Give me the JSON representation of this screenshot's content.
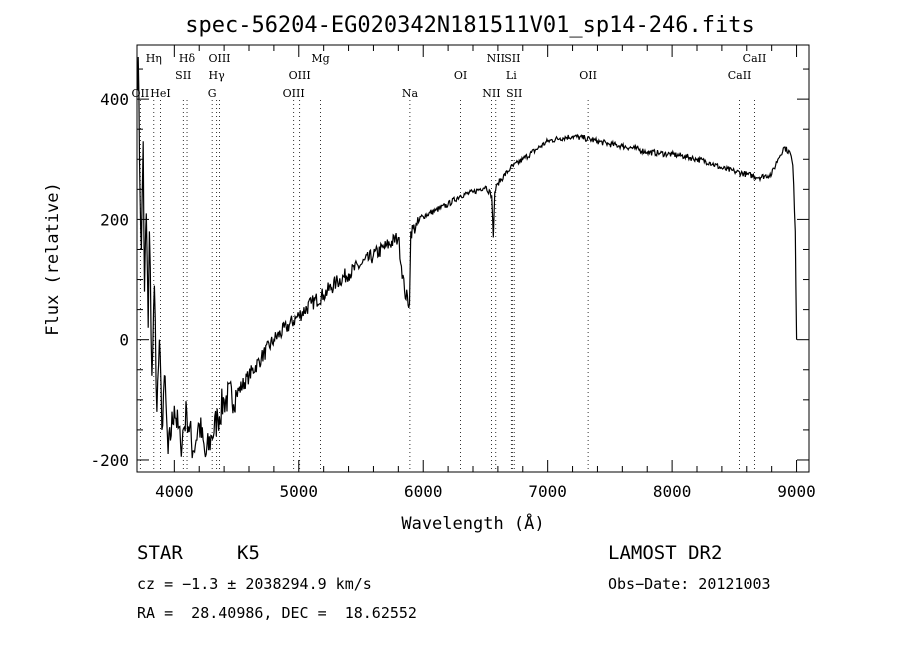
{
  "chart_data": {
    "type": "line",
    "title": "spec-56204-EG020342N181511V01_sp14-246.fits",
    "xlabel": "Wavelength (Å)",
    "ylabel": "Flux (relative)",
    "xlim": [
      3700,
      9100
    ],
    "ylim": [
      -220,
      490
    ],
    "xticks": [
      4000,
      5000,
      6000,
      7000,
      8000,
      9000
    ],
    "yticks": [
      -200,
      0,
      200,
      400
    ],
    "grid": false,
    "series": [
      {
        "x": [
          3700,
          3710,
          3720,
          3735,
          3750,
          3760,
          3775,
          3790,
          3800,
          3820,
          3840,
          3860,
          3880,
          3900,
          3920,
          3950,
          4000,
          4050,
          4100,
          4150,
          4200,
          4250,
          4300,
          4350,
          4400,
          4500,
          4600,
          4700,
          4800,
          4900,
          5000,
          5100,
          5200,
          5300,
          5400,
          5500,
          5600,
          5700,
          5800,
          5850,
          5890,
          5900,
          5950,
          6000,
          6100,
          6200,
          6300,
          6400,
          6500,
          6550,
          6563,
          6575,
          6600,
          6700,
          6800,
          6900,
          7000,
          7100,
          7200,
          7300,
          7400,
          7500,
          7600,
          7700,
          7800,
          7900,
          8000,
          8100,
          8200,
          8300,
          8400,
          8500,
          8600,
          8700,
          8800,
          8850,
          8900,
          8950,
          8970,
          8990,
          9000
        ],
        "y": [
          420,
          470,
          300,
          150,
          330,
          80,
          210,
          20,
          180,
          -60,
          90,
          -120,
          0,
          -150,
          -60,
          -190,
          -110,
          -175,
          -120,
          -185,
          -140,
          -195,
          -160,
          -130,
          -100,
          -90,
          -60,
          -30,
          0,
          20,
          40,
          60,
          75,
          95,
          110,
          125,
          140,
          155,
          170,
          80,
          60,
          180,
          190,
          205,
          215,
          225,
          240,
          245,
          255,
          240,
          170,
          245,
          260,
          285,
          300,
          315,
          330,
          335,
          338,
          335,
          330,
          325,
          322,
          318,
          312,
          310,
          308,
          305,
          300,
          295,
          285,
          280,
          275,
          270,
          275,
          300,
          320,
          310,
          290,
          180,
          0
        ]
      }
    ],
    "lines": [
      {
        "label": "Hη",
        "x": 3835,
        "row": 0
      },
      {
        "label": "OII",
        "x": 3727,
        "row": 2
      },
      {
        "label": "HeI",
        "x": 3889,
        "row": 2
      },
      {
        "label": "Hδ",
        "x": 4102,
        "row": 0
      },
      {
        "label": "SII",
        "x": 4072,
        "row": 1
      },
      {
        "label": "OIII",
        "x": 4363,
        "row": 0
      },
      {
        "label": "Hγ",
        "x": 4340,
        "row": 1
      },
      {
        "label": "G",
        "x": 4304,
        "row": 2
      },
      {
        "label": "Mg",
        "x": 5175,
        "row": 0
      },
      {
        "label": "OIII",
        "x": 5007,
        "row": 1
      },
      {
        "label": "OIII",
        "x": 4959,
        "row": 2
      },
      {
        "label": "Na",
        "x": 5893,
        "row": 2
      },
      {
        "label": "NII",
        "x": 6583,
        "row": 0
      },
      {
        "label": "SII",
        "x": 6716,
        "row": 0
      },
      {
        "label": "OI",
        "x": 6300,
        "row": 1
      },
      {
        "label": "Li",
        "x": 6708,
        "row": 1
      },
      {
        "label": "NII",
        "x": 6548,
        "row": 2
      },
      {
        "label": "SII",
        "x": 6731,
        "row": 2
      },
      {
        "label": "OII",
        "x": 7325,
        "row": 1
      },
      {
        "label": "CaII",
        "x": 8662,
        "row": 0
      },
      {
        "label": "CaII",
        "x": 8542,
        "row": 1
      }
    ]
  },
  "info": {
    "class": "STAR",
    "subclass": "K5",
    "survey": "LAMOST DR2",
    "cz": "cz = −1.3 ± 2038294.9 km/s",
    "obsdate": "Obs−Date: 20121003",
    "radec": "RA =  28.40986, DEC =  18.62552"
  }
}
